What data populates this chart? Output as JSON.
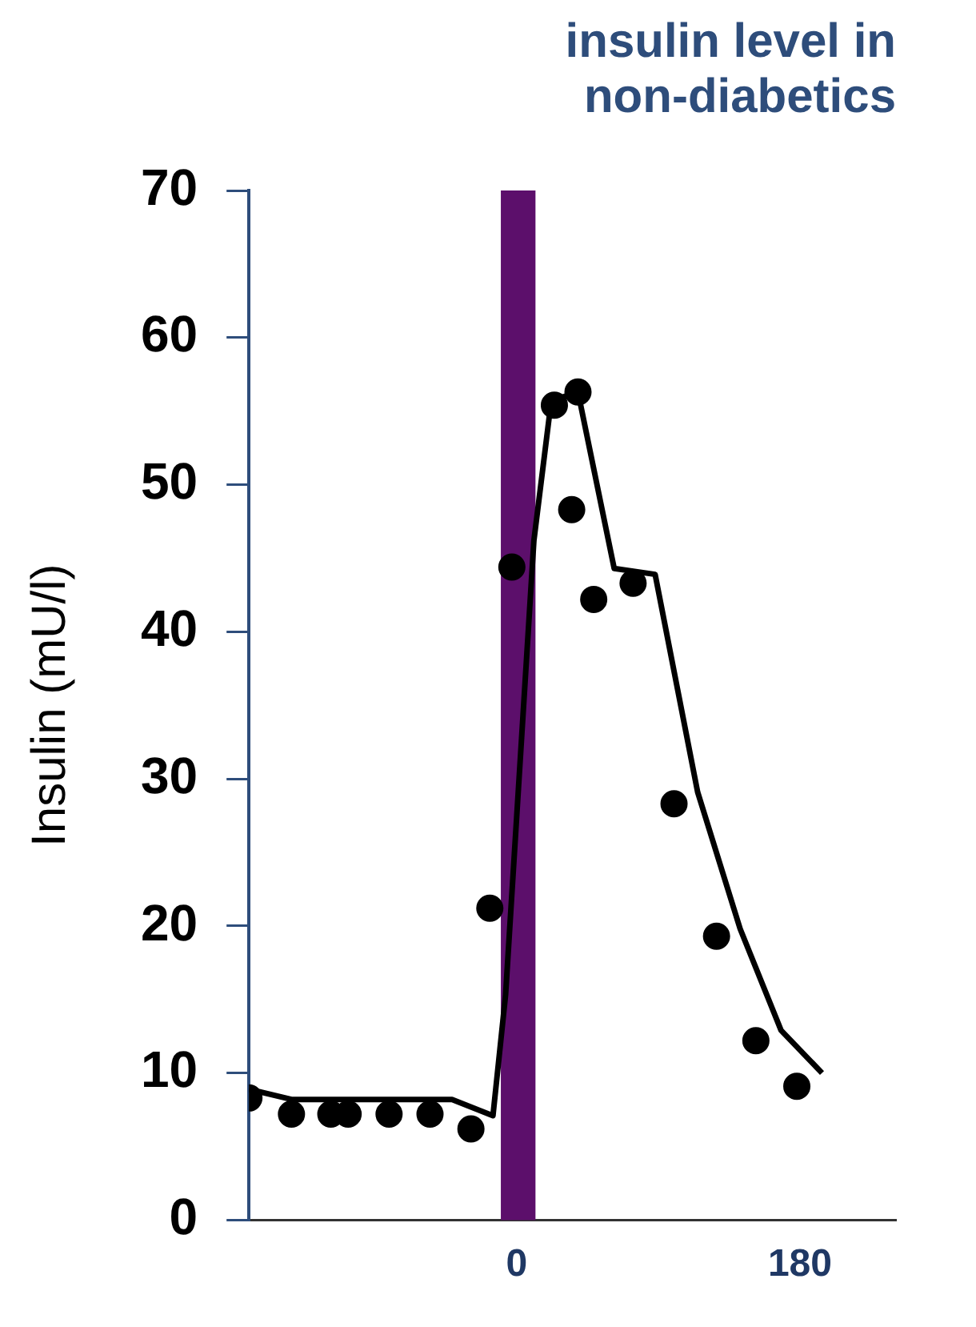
{
  "chart_data": {
    "type": "scatter",
    "title": "insulin level in\nnon-diabetics",
    "ylabel": "Insulin (mU/l)",
    "xlim": [
      -170,
      241
    ],
    "xticks": [
      0,
      180
    ],
    "ylim": [
      0,
      70
    ],
    "yticks": [
      0,
      10,
      20,
      30,
      40,
      50,
      60,
      70
    ],
    "grid": false,
    "legend": false,
    "bands": [
      {
        "axis": "x",
        "from": -10,
        "to": 12,
        "color": "#5c0f6b"
      }
    ],
    "series": [
      {
        "type": "scatter",
        "color": "#000000",
        "marker": "circle",
        "x": [
          -170,
          -143,
          -118,
          -107,
          -81,
          -55,
          -29,
          -17,
          -3,
          24,
          39,
          35,
          49,
          74,
          100,
          127,
          152,
          178
        ],
        "values": [
          8.3,
          7.2,
          7.2,
          7.2,
          7.2,
          7.2,
          6.2,
          21.2,
          44.4,
          55.4,
          56.3,
          48.3,
          42.2,
          43.3,
          28.3,
          19.3,
          12.2,
          9.1
        ]
      },
      {
        "type": "line",
        "color": "#000000",
        "marker": "none",
        "line_style": "solid",
        "x": [
          -170,
          -143,
          -41,
          -15,
          -7,
          11,
          22,
          39,
          62,
          88,
          115,
          142,
          168,
          194
        ],
        "values": [
          8.9,
          8.2,
          8.2,
          7.1,
          15.3,
          46.2,
          55.7,
          56.3,
          44.3,
          43.9,
          29.1,
          19.8,
          12.9,
          10
        ]
      }
    ]
  }
}
